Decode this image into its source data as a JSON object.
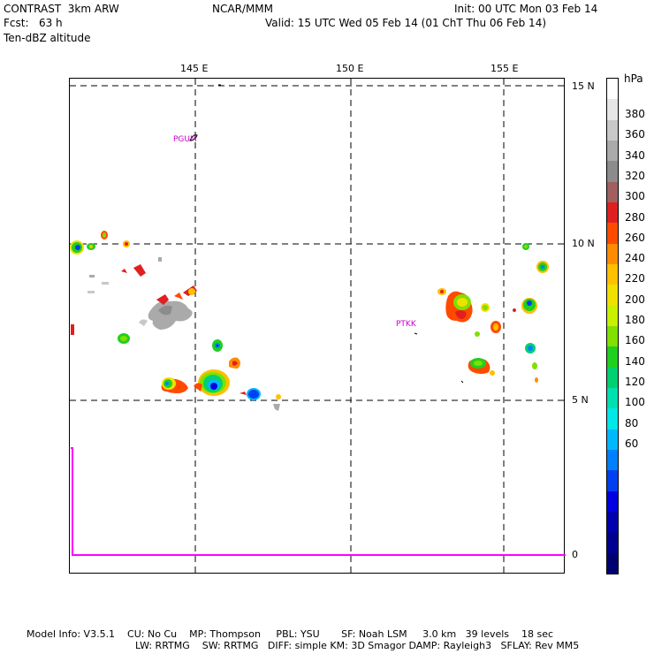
{
  "header": {
    "left_line1": "CONTRAST  3km ARW",
    "left_line2": "Fcst:   63 h",
    "left_line3": "Ten-dBZ altitude",
    "center": "NCAR/MMM",
    "right_line1": "Init: 00 UTC Mon 03 Feb 14",
    "right_line2": "Valid: 15 UTC Wed 05 Feb 14 (01 ChT Thu 06 Feb 14)"
  },
  "map": {
    "lon_labels": [
      "145 E",
      "150 E",
      "155 E"
    ],
    "lat_labels": [
      "15 N",
      "10 N",
      "5 N"
    ],
    "profile_axis_label": "0",
    "station_labels": [
      "PGUM",
      "PTKK"
    ]
  },
  "legend": {
    "unit": "hPa",
    "labels": [
      "380",
      "360",
      "340",
      "320",
      "300",
      "280",
      "260",
      "240",
      "220",
      "200",
      "180",
      "160",
      "140",
      "120",
      "100",
      "80",
      "60"
    ],
    "colors": [
      "#ffffff",
      "#e6e6e6",
      "#c8c8c8",
      "#aaaaaa",
      "#8c8c8c",
      "#a06060",
      "#e02020",
      "#ff4a00",
      "#ff8c00",
      "#ffc000",
      "#f0e000",
      "#c8f000",
      "#80e000",
      "#20d020",
      "#00d070",
      "#00e0b0",
      "#00e8e8",
      "#00b8ff",
      "#0080ff",
      "#0040f0",
      "#0000e0",
      "#0000b0",
      "#000090",
      "#000070"
    ]
  },
  "footer": {
    "line1": "Model Info: V3.5.1    CU: No Cu    MP: Thompson     PBL: YSU       SF: Noah LSM     3.0 km   39 levels    18 sec",
    "line2": "LW: RRTMG    SW: RRTMG   DIFF: simple KM: 3D Smagor DAMP: Rayleigh3   SFLAY: Rev MM5"
  }
}
